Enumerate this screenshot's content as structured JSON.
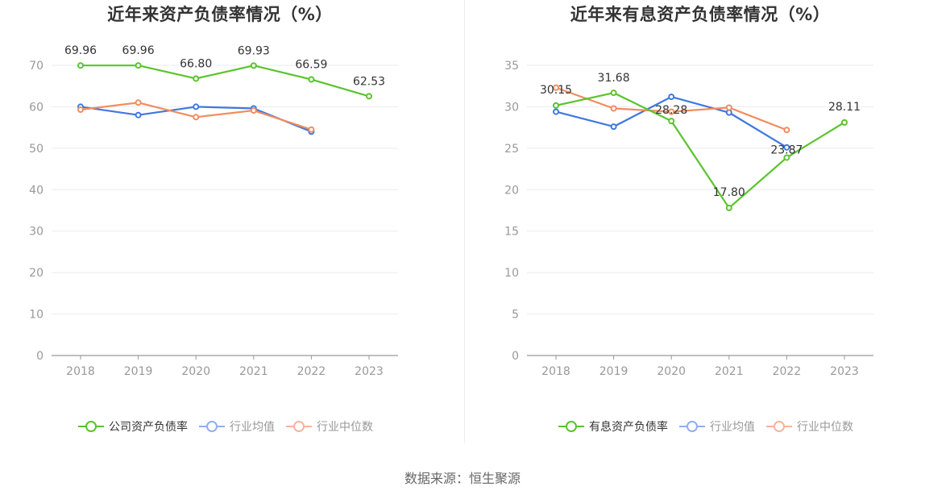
{
  "source": "数据来源：恒生聚源",
  "chart_data": [
    {
      "type": "line",
      "title": "近年来资产负债率情况（%）",
      "x": [
        "2018",
        "2019",
        "2020",
        "2021",
        "2022",
        "2023"
      ],
      "ylim": [
        0,
        70
      ],
      "yticks": [
        "0",
        "10",
        "20",
        "30",
        "40",
        "50",
        "60",
        "70"
      ],
      "grid": true,
      "legend_position": "bottom",
      "series": [
        {
          "name": "公司资产负债率",
          "color": "#5ac42c",
          "values": [
            69.96,
            69.96,
            66.8,
            69.93,
            66.59,
            62.53
          ],
          "labels": [
            "69.96",
            "69.96",
            "66.80",
            "69.93",
            "66.59",
            "62.53"
          ]
        },
        {
          "name": "行业均值",
          "color": "#3f78e0",
          "values": [
            60.0,
            58.0,
            60.0,
            59.6,
            54.0,
            null
          ]
        },
        {
          "name": "行业中位数",
          "color": "#f28c5e",
          "values": [
            59.3,
            61.0,
            57.5,
            59.1,
            54.5,
            null
          ]
        }
      ]
    },
    {
      "type": "line",
      "title": "近年来有息资产负债率情况（%）",
      "x": [
        "2018",
        "2019",
        "2020",
        "2021",
        "2022",
        "2023"
      ],
      "ylim": [
        0,
        35
      ],
      "yticks": [
        "0",
        "5",
        "10",
        "15",
        "20",
        "25",
        "30",
        "35"
      ],
      "grid": true,
      "legend_position": "bottom",
      "series": [
        {
          "name": "有息资产负债率",
          "color": "#5ac42c",
          "values": [
            30.15,
            31.68,
            28.28,
            17.8,
            23.87,
            28.11
          ],
          "labels": [
            "30.15",
            "31.68",
            "28.28",
            "17.80",
            "23.87",
            "28.11"
          ]
        },
        {
          "name": "行业均值",
          "color": "#3f78e0",
          "values": [
            29.4,
            27.6,
            31.2,
            29.3,
            25.1,
            null
          ]
        },
        {
          "name": "行业中位数",
          "color": "#f28c5e",
          "values": [
            32.3,
            29.8,
            29.4,
            29.9,
            27.2,
            null
          ]
        }
      ]
    }
  ],
  "legend_colors": {
    "primary": "#5ac42c",
    "mean": "#8fb0ef",
    "median": "#f7b49a"
  }
}
